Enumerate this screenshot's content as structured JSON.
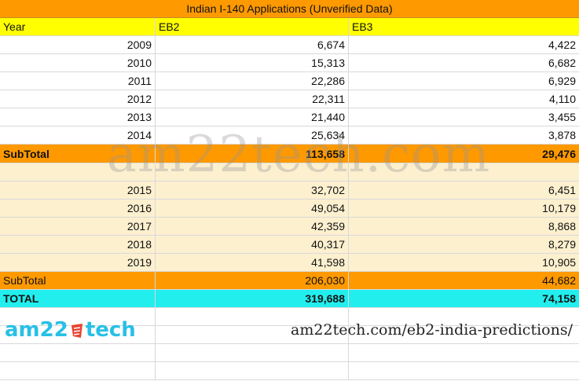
{
  "title": "Indian I-140 Applications (Unverified Data)",
  "headers": [
    "Year",
    "EB2",
    "EB3"
  ],
  "group1": [
    {
      "year": "2009",
      "eb2": "6,674",
      "eb3": "4,422"
    },
    {
      "year": "2010",
      "eb2": "15,313",
      "eb3": "6,682"
    },
    {
      "year": "2011",
      "eb2": "22,286",
      "eb3": "6,929"
    },
    {
      "year": "2012",
      "eb2": "22,311",
      "eb3": "4,110"
    },
    {
      "year": "2013",
      "eb2": "21,440",
      "eb3": "3,455"
    },
    {
      "year": "2014",
      "eb2": "25,634",
      "eb3": "3,878"
    }
  ],
  "subtotal1": {
    "label": "SubTotal",
    "eb2": "113,658",
    "eb3": "29,476"
  },
  "group2": [
    {
      "year": "2015",
      "eb2": "32,702",
      "eb3": "6,451"
    },
    {
      "year": "2016",
      "eb2": "49,054",
      "eb3": "10,179"
    },
    {
      "year": "2017",
      "eb2": "42,359",
      "eb3": "8,868"
    },
    {
      "year": "2018",
      "eb2": "40,317",
      "eb3": "8,279"
    },
    {
      "year": "2019",
      "eb2": "41,598",
      "eb3": "10,905"
    }
  ],
  "subtotal2": {
    "label": "SubTotal",
    "eb2": "206,030",
    "eb3": "44,682"
  },
  "total": {
    "label": "TOTAL",
    "eb2": "319,688",
    "eb3": "74,158"
  },
  "watermark": "am22tech.com",
  "logo": {
    "left": "am22",
    "right": "tech",
    "mark_color": "#e8432e",
    "color": "#27c0e6"
  },
  "footer_url": "am22tech.com/eb2-india-predictions/",
  "colors": {
    "title": "#ff9900",
    "header": "#ffff00",
    "subtotal": "#ff9900",
    "band": "#fdf0cf",
    "total": "#22eeee"
  }
}
